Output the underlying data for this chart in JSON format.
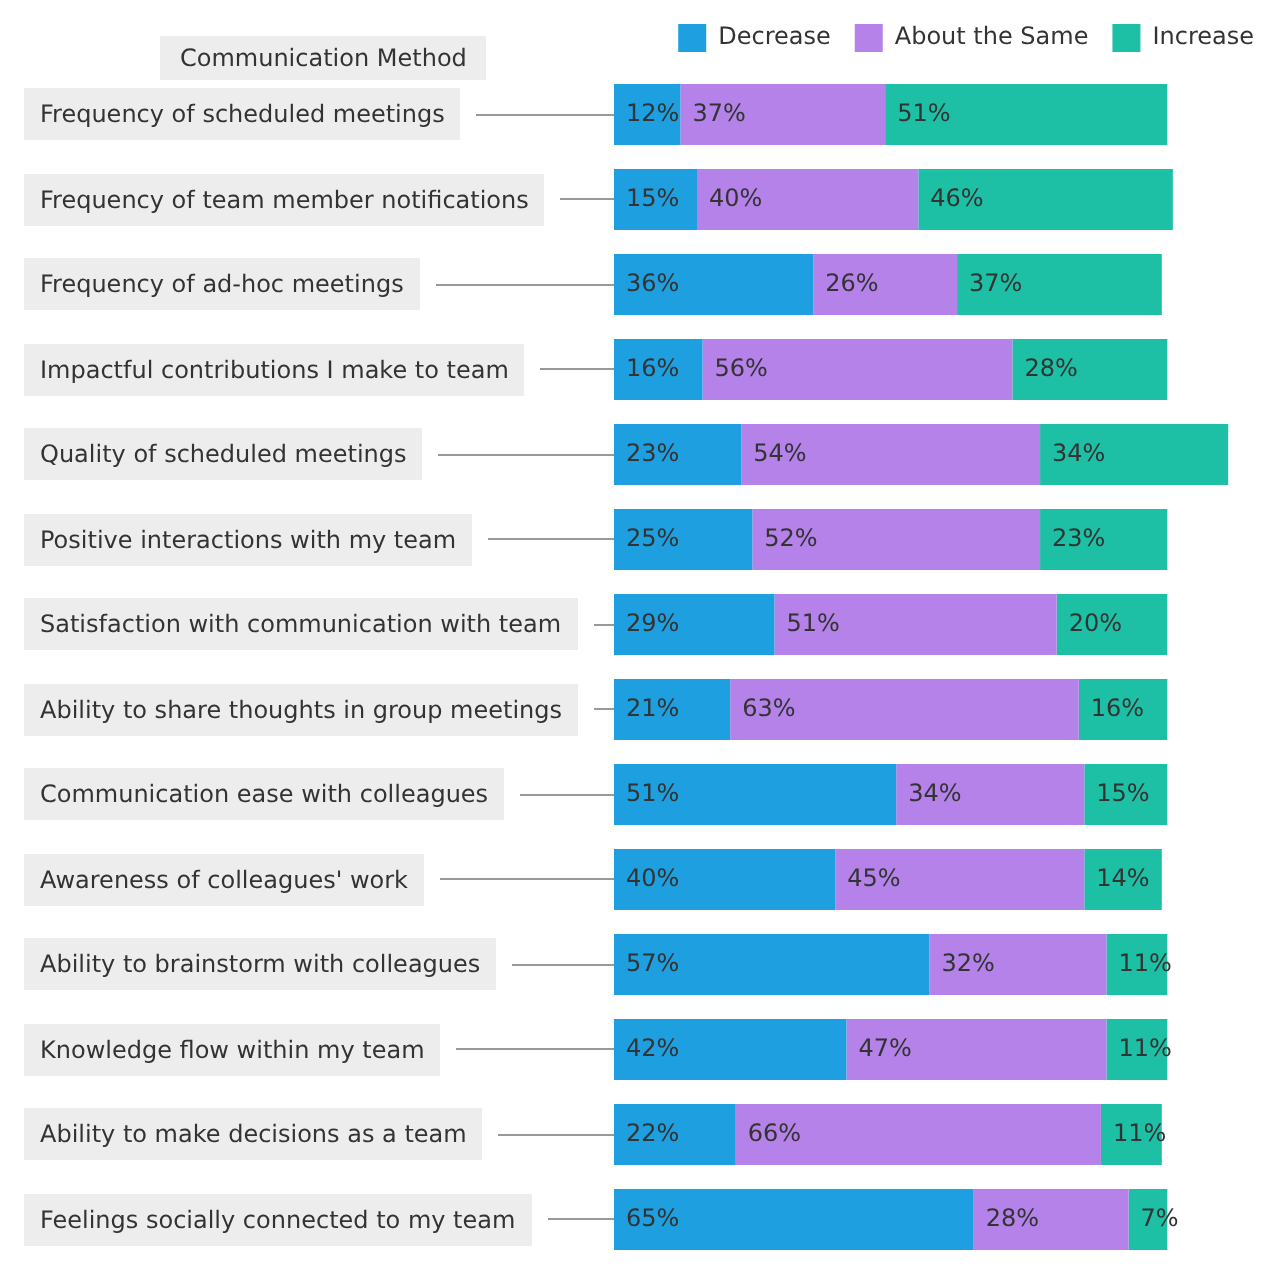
{
  "chart_data": {
    "type": "bar",
    "orientation": "horizontal",
    "stacked": true,
    "annotations": [
      "Communication Method"
    ],
    "legend": "top right",
    "categories": [
      "Frequency of scheduled meetings",
      "Frequency of team member notifications",
      "Frequency of ad-hoc meetings",
      "Impactful contributions I make to team",
      "Quality of scheduled meetings",
      "Positive interactions with my team",
      "Satisfaction with communication with team",
      "Ability to share thoughts in group meetings",
      "Communication ease with colleagues",
      "Awareness of colleagues' work",
      "Ability to brainstorm with colleagues",
      "Knowledge flow within my team",
      "Ability to make decisions as a team",
      "Feelings socially connected to my team"
    ],
    "series": [
      {
        "name": "Decrease",
        "color": "#1e9fe0",
        "values": [
          12,
          15,
          36,
          16,
          23,
          25,
          29,
          21,
          51,
          40,
          57,
          42,
          22,
          65
        ],
        "value_labels": [
          "12%",
          "15%",
          "36%",
          "16%",
          "23%",
          "25%",
          "29%",
          "21%",
          "51%",
          "40%",
          "57%",
          "42%",
          "22%",
          "65%"
        ]
      },
      {
        "name": "About the Same",
        "color": "#b482e8",
        "values": [
          37,
          40,
          26,
          56,
          54,
          52,
          51,
          63,
          34,
          45,
          32,
          47,
          66,
          28
        ],
        "value_labels": [
          "37%",
          "40%",
          "26%",
          "56%",
          "54%",
          "52%",
          "51%",
          "63%",
          "34%",
          "45%",
          "32%",
          "47%",
          "66%",
          "28%"
        ]
      },
      {
        "name": "Increase",
        "color": "#1dbfa5",
        "values": [
          51,
          46,
          37,
          28,
          34,
          23,
          20,
          16,
          15,
          14,
          11,
          11,
          11,
          7
        ],
        "value_labels": [
          "51%",
          "46%",
          "37%",
          "28%",
          "34%",
          "23%",
          "20%",
          "16%",
          "15%",
          "14%",
          "11%",
          "11%",
          "11%",
          "7%"
        ]
      }
    ]
  }
}
